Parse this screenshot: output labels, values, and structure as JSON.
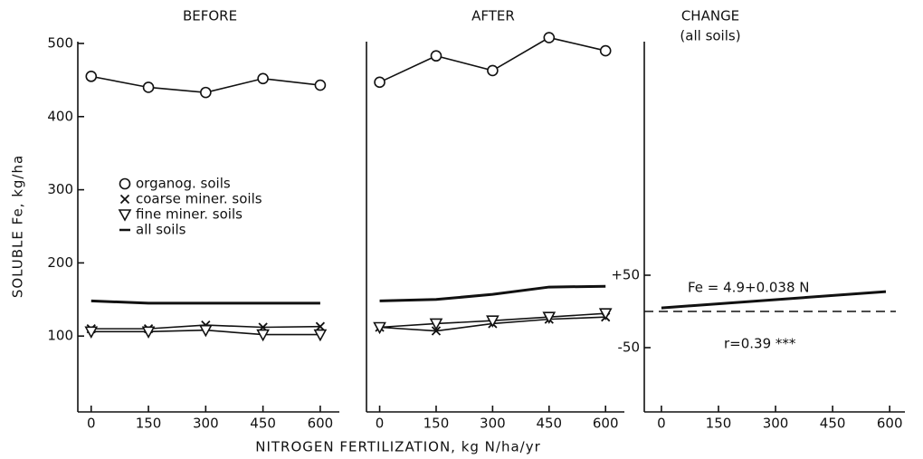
{
  "chart_data": [
    {
      "type": "line",
      "title": "BEFORE",
      "ylabel": "SOLUBLE  Fe, kg/ha",
      "x": [
        0,
        150,
        300,
        450,
        600
      ],
      "xlim": [
        -35,
        650
      ],
      "xticks": [
        0,
        150,
        300,
        450,
        600
      ],
      "ylim": [
        0,
        500
      ],
      "yticks": [
        100,
        200,
        300,
        400,
        500
      ],
      "legend": "center-left",
      "series": [
        {
          "name": "organog. soils",
          "color": "#111111",
          "marker": "circle",
          "values": [
            455,
            440,
            433,
            452,
            443
          ]
        },
        {
          "name": "coarse miner. soils",
          "color": "#111111",
          "marker": "x",
          "values": [
            110,
            110,
            115,
            112,
            113
          ]
        },
        {
          "name": "fine miner. soils",
          "color": "#111111",
          "marker": "triangle",
          "values": [
            106,
            106,
            108,
            102,
            102
          ]
        },
        {
          "name": "all soils",
          "color": "#111111",
          "marker": "none",
          "values": [
            148,
            145,
            145,
            145,
            145
          ]
        }
      ]
    },
    {
      "type": "line",
      "title": "AFTER",
      "xlabel": "NITROGEN  FERTILIZATION, kg N/ha/yr",
      "x": [
        0,
        150,
        300,
        450,
        600
      ],
      "xlim": [
        -35,
        650
      ],
      "xticks": [
        0,
        150,
        300,
        450,
        600
      ],
      "ylim": [
        0,
        500
      ],
      "series": [
        {
          "color": "#111111",
          "marker": "circle",
          "values": [
            447,
            483,
            463,
            508,
            490
          ]
        },
        {
          "color": "#111111",
          "marker": "x",
          "values": [
            112,
            107,
            117,
            123,
            126
          ]
        },
        {
          "color": "#111111",
          "marker": "triangle",
          "values": [
            112,
            117,
            121,
            126,
            131
          ]
        },
        {
          "color": "#111111",
          "marker": "none",
          "values": [
            148,
            150,
            157,
            167,
            168
          ]
        }
      ]
    },
    {
      "type": "line",
      "title": "CHANGE",
      "subtitle": "(all soils)",
      "x": [
        0,
        590
      ],
      "xlim": [
        -45,
        640
      ],
      "xticks": [
        0,
        150,
        300,
        450,
        600
      ],
      "ylim": [
        -135,
        370
      ],
      "yticks": [
        {
          "value": 50,
          "label": "+50"
        },
        -50
      ],
      "hline": 0,
      "annotations": [
        "Fe = 4.9+0.038 N",
        "r=0.39 ***"
      ],
      "series": [
        {
          "color": "#111111",
          "marker": "none",
          "values": [
            4.9,
            27.3
          ]
        }
      ]
    }
  ]
}
